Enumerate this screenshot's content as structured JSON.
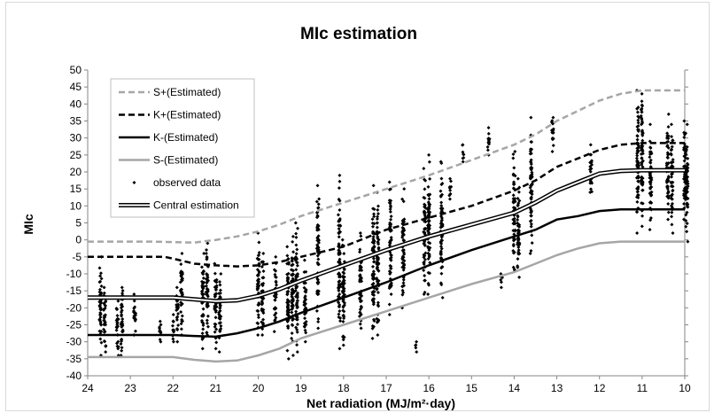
{
  "chart_data": {
    "type": "line",
    "title": "MIc estimation",
    "xlabel": "Net radiation (MJ/m²·day)",
    "ylabel": "MIc",
    "xlim": [
      24,
      10
    ],
    "x_reversed": true,
    "ylim": [
      -40,
      50
    ],
    "x_ticks": [
      "24",
      "23",
      "22",
      "21",
      "20",
      "19",
      "18",
      "17",
      "16",
      "15",
      "14",
      "13",
      "12",
      "11",
      "10"
    ],
    "y_ticks": [
      "50",
      "45",
      "40",
      "35",
      "30",
      "25",
      "20",
      "15",
      "10",
      "5",
      "0",
      "-5",
      "-10",
      "-15",
      "-20",
      "-25",
      "-30",
      "-35",
      "-40"
    ],
    "grid": false,
    "legend_position": "top-left",
    "series": [
      {
        "name": "S+(Estimated)",
        "style": "dashed",
        "color": "#a6a6a6",
        "x": [
          24,
          22.5,
          21.5,
          21,
          20.5,
          20,
          19.5,
          19,
          18,
          17,
          16,
          15,
          14,
          13.5,
          13,
          12.5,
          12,
          11.5,
          11,
          10.5,
          10
        ],
        "y": [
          -0.5,
          -0.5,
          -0.8,
          0,
          1,
          2.5,
          4.5,
          7,
          11,
          15,
          19,
          23.5,
          28,
          31,
          35,
          38,
          41,
          43,
          44,
          44,
          44
        ]
      },
      {
        "name": "K+(Estimated)",
        "style": "dashed",
        "color": "#000000",
        "x": [
          24,
          22.2,
          22,
          21.5,
          21,
          20.5,
          20,
          19.5,
          19,
          18,
          17,
          16,
          15,
          14,
          13.5,
          13,
          12.5,
          12,
          11.5,
          11,
          10.5,
          10
        ],
        "y": [
          -5,
          -5,
          -5.5,
          -7,
          -7.5,
          -7.8,
          -7.5,
          -6.5,
          -5,
          -2,
          3,
          6.5,
          10,
          14.5,
          17.5,
          21.5,
          24,
          26.5,
          28,
          28.5,
          28.5,
          28.5
        ]
      },
      {
        "name": "Central estimation",
        "style": "double",
        "color": "#000000",
        "x": [
          24,
          22,
          21.5,
          21,
          20.5,
          20,
          19.5,
          19,
          18,
          17,
          16,
          15,
          14,
          13.5,
          13,
          12.5,
          12,
          11.5,
          11,
          10.5,
          10
        ],
        "y": [
          -17,
          -17,
          -17.5,
          -18,
          -17.8,
          -16.5,
          -14.5,
          -12,
          -7.5,
          -3,
          1,
          4.5,
          8,
          11,
          14.5,
          17,
          19.5,
          20.3,
          20.5,
          20.5,
          20.5
        ]
      },
      {
        "name": "K-(Estimated)",
        "style": "solid",
        "color": "#000000",
        "x": [
          24,
          22,
          21.5,
          21,
          20.5,
          20,
          19.5,
          19,
          18,
          17,
          16,
          15,
          14,
          13.5,
          13,
          12.5,
          12,
          11.5,
          11,
          10.5,
          10
        ],
        "y": [
          -28,
          -28,
          -28.3,
          -28.5,
          -27.5,
          -26,
          -24,
          -21.5,
          -17,
          -12.5,
          -7.5,
          -3,
          1,
          3,
          6,
          7,
          8.5,
          9,
          9,
          9,
          9
        ]
      },
      {
        "name": "S-(Estimated)",
        "style": "solid",
        "color": "#a6a6a6",
        "x": [
          24,
          22,
          21.5,
          21,
          20.5,
          20,
          19.5,
          19,
          18,
          17,
          16,
          15,
          14,
          13.5,
          13,
          12.5,
          12,
          11.5,
          11,
          10.5,
          10
        ],
        "y": [
          -34.5,
          -34.5,
          -35.3,
          -35.8,
          -35.5,
          -34,
          -32,
          -29,
          -25,
          -21,
          -17,
          -13,
          -9.5,
          -7,
          -4.5,
          -2.5,
          -1,
          -0.5,
          -0.5,
          -0.5,
          -0.5
        ]
      }
    ],
    "scatter": {
      "name": "observed data",
      "marker": "diamond",
      "color": "#000000",
      "columns": [
        {
          "x": 23.7,
          "y_min": -34,
          "y_max": -5
        },
        {
          "x": 23.6,
          "y_min": -33,
          "y_max": -14
        },
        {
          "x": 23.3,
          "y_min": -34,
          "y_max": -18
        },
        {
          "x": 23.2,
          "y_min": -34,
          "y_max": -14
        },
        {
          "x": 22.9,
          "y_min": -28,
          "y_max": -16
        },
        {
          "x": 22.3,
          "y_min": -30,
          "y_max": -24
        },
        {
          "x": 22.0,
          "y_min": -30,
          "y_max": -22
        },
        {
          "x": 21.9,
          "y_min": -30,
          "y_max": -14
        },
        {
          "x": 21.8,
          "y_min": -28,
          "y_max": -4
        },
        {
          "x": 21.3,
          "y_min": -32,
          "y_max": -4
        },
        {
          "x": 21.2,
          "y_min": -28,
          "y_max": -1
        },
        {
          "x": 21.0,
          "y_min": -32,
          "y_max": -7
        },
        {
          "x": 20.9,
          "y_min": -33,
          "y_max": -10
        },
        {
          "x": 20.0,
          "y_min": -28,
          "y_max": 2
        },
        {
          "x": 19.9,
          "y_min": -28,
          "y_max": -4
        },
        {
          "x": 19.6,
          "y_min": -27,
          "y_max": -5
        },
        {
          "x": 19.3,
          "y_min": -35,
          "y_max": -2
        },
        {
          "x": 19.2,
          "y_min": -34,
          "y_max": 1
        },
        {
          "x": 19.1,
          "y_min": -33,
          "y_max": 5
        },
        {
          "x": 18.9,
          "y_min": -30,
          "y_max": -6
        },
        {
          "x": 18.6,
          "y_min": -26,
          "y_max": 16
        },
        {
          "x": 18.1,
          "y_min": -32,
          "y_max": 19
        },
        {
          "x": 18.0,
          "y_min": -31,
          "y_max": 0
        },
        {
          "x": 17.6,
          "y_min": -26,
          "y_max": 2
        },
        {
          "x": 17.3,
          "y_min": -29,
          "y_max": 16
        },
        {
          "x": 17.2,
          "y_min": -28,
          "y_max": 14
        },
        {
          "x": 16.9,
          "y_min": -22,
          "y_max": 17
        },
        {
          "x": 16.6,
          "y_min": -20,
          "y_max": 15
        },
        {
          "x": 16.3,
          "y_min": -33,
          "y_max": -30
        },
        {
          "x": 16.1,
          "y_min": -16,
          "y_max": 21
        },
        {
          "x": 16.0,
          "y_min": -16,
          "y_max": 25
        },
        {
          "x": 15.7,
          "y_min": -17,
          "y_max": 23
        },
        {
          "x": 15.5,
          "y_min": 12,
          "y_max": 18
        },
        {
          "x": 15.2,
          "y_min": 23,
          "y_max": 28
        },
        {
          "x": 14.6,
          "y_min": 25,
          "y_max": 33
        },
        {
          "x": 14.3,
          "y_min": -14,
          "y_max": -10
        },
        {
          "x": 14.0,
          "y_min": -9,
          "y_max": 26
        },
        {
          "x": 13.9,
          "y_min": -11,
          "y_max": 18
        },
        {
          "x": 13.6,
          "y_min": -4,
          "y_max": 36
        },
        {
          "x": 13.1,
          "y_min": 26,
          "y_max": 36
        },
        {
          "x": 12.2,
          "y_min": 14,
          "y_max": 28
        },
        {
          "x": 11.1,
          "y_min": 2,
          "y_max": 44
        },
        {
          "x": 11.0,
          "y_min": 4,
          "y_max": 43
        },
        {
          "x": 10.8,
          "y_min": 3,
          "y_max": 34
        },
        {
          "x": 10.4,
          "y_min": 6,
          "y_max": 37
        },
        {
          "x": 10.3,
          "y_min": 2,
          "y_max": 34
        },
        {
          "x": 10.0,
          "y_min": 6,
          "y_max": 35
        },
        {
          "x": 9.95,
          "y_min": -0.5,
          "y_max": 34
        }
      ]
    }
  }
}
